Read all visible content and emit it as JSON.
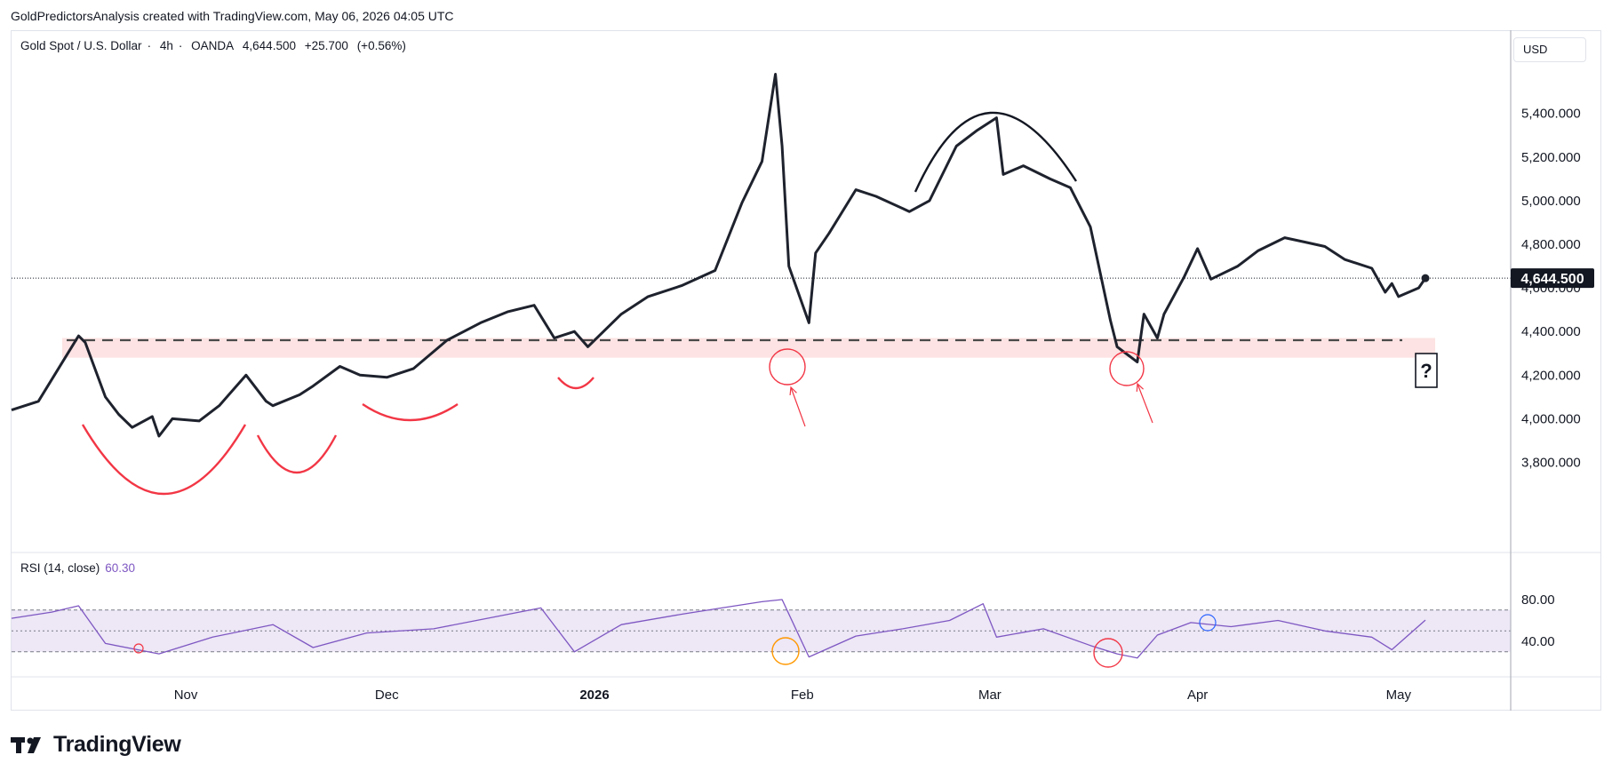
{
  "attribution": "GoldPredictorsAnalysis created with TradingView.com, May 06, 2026 04:05 UTC",
  "legend": {
    "symbol": "Gold Spot / U.S. Dollar",
    "interval": "4h",
    "exchange": "OANDA",
    "price": "4,644.500",
    "change": "+25.700",
    "change_pct": "(+0.56%)"
  },
  "currency_button": "USD",
  "brand": {
    "name": "TradingView",
    "icon": "tradingview-logo-icon"
  },
  "rsi_legend": {
    "label": "RSI (14, close)",
    "value": "60.30"
  },
  "colors": {
    "price_line": "#1e222d",
    "support_zone": "#fde3e3",
    "annotation_red": "#f23645",
    "rsi_line": "#7e57c2",
    "rsi_band": "#ede7f6",
    "last_price_badge": "#131722",
    "annotation_orange": "#ff9800",
    "annotation_blue": "#2962ff"
  },
  "chart_data": [
    {
      "type": "line",
      "series": [
        {
          "name": "",
          "x": [
            "2025-10-06",
            "2025-10-10",
            "2025-10-14",
            "2025-10-16",
            "2025-10-17",
            "2025-10-20",
            "2025-10-22",
            "2025-10-24",
            "2025-10-27",
            "2025-10-28",
            "2025-10-30",
            "2025-11-03",
            "2025-11-06",
            "2025-11-10",
            "2025-11-13",
            "2025-11-14",
            "2025-11-18",
            "2025-11-20",
            "2025-11-24",
            "2025-11-27",
            "2025-12-01",
            "2025-12-05",
            "2025-12-10",
            "2025-12-15",
            "2025-12-19",
            "2025-12-23",
            "2025-12-26",
            "2025-12-29",
            "2025-12-31",
            "2026-01-05",
            "2026-01-09",
            "2026-01-14",
            "2026-01-19",
            "2026-01-23",
            "2026-01-26",
            "2026-01-28",
            "2026-01-29",
            "2026-01-30",
            "2026-02-02",
            "2026-02-03",
            "2026-02-05",
            "2026-02-09",
            "2026-02-12",
            "2026-02-17",
            "2026-02-20",
            "2026-02-24",
            "2026-02-27",
            "2026-03-02",
            "2026-03-03",
            "2026-03-06",
            "2026-03-10",
            "2026-03-13",
            "2026-03-16",
            "2026-03-19",
            "2026-03-20",
            "2026-03-23",
            "2026-03-24",
            "2026-03-26",
            "2026-03-27",
            "2026-03-30",
            "2026-04-01",
            "2026-04-03",
            "2026-04-07",
            "2026-04-10",
            "2026-04-14",
            "2026-04-17",
            "2026-04-20",
            "2026-04-23",
            "2026-04-27",
            "2026-04-29",
            "2026-04-30",
            "2026-05-01",
            "2026-05-04",
            "2026-05-05"
          ],
          "values": [
            4040,
            4080,
            4280,
            4380,
            4350,
            4100,
            4020,
            3960,
            4010,
            3920,
            4000,
            3990,
            4060,
            4200,
            4080,
            4060,
            4110,
            4150,
            4240,
            4200,
            4190,
            4230,
            4360,
            4440,
            4490,
            4520,
            4370,
            4400,
            4330,
            4480,
            4560,
            4610,
            4680,
            4990,
            5180,
            5580,
            5250,
            4700,
            4440,
            4760,
            4850,
            5050,
            5020,
            4950,
            5000,
            5250,
            5320,
            5380,
            5120,
            5160,
            5100,
            5060,
            4880,
            4450,
            4330,
            4260,
            4480,
            4370,
            4480,
            4650,
            4780,
            4640,
            4700,
            4770,
            4830,
            4810,
            4790,
            4730,
            4690,
            4580,
            4620,
            4560,
            4600,
            4644.5
          ]
        }
      ],
      "ylim": [
        3700,
        5600
      ],
      "y_ticks": [
        "3,800.000",
        "4,000.000",
        "4,200.000",
        "4,400.000",
        "4,800.000",
        "5,000.000",
        "5,200.000",
        "5,400.000"
      ],
      "y_tick_values": [
        3800,
        4000,
        4200,
        4400,
        4800,
        5000,
        5200,
        5400
      ],
      "hidden_tick_label": "4,600.000",
      "x_ticks": [
        "Nov",
        "Dec",
        "2026",
        "Feb",
        "Mar",
        "Apr",
        "May"
      ],
      "x_tick_dates": [
        "2025-11-01",
        "2025-12-01",
        "2026-01-01",
        "2026-02-01",
        "2026-03-01",
        "2026-04-01",
        "2026-05-01"
      ],
      "last_price": 4644.5,
      "last_price_label": "4,644.500",
      "support_level": 4360,
      "support_zone": [
        4280,
        4370
      ],
      "question_marker": "?",
      "grid": false,
      "annotations": [
        "cup-arcs",
        "dome-arc",
        "red-circles",
        "red-arrows",
        "question-box"
      ]
    },
    {
      "type": "line",
      "series": [
        {
          "name": "",
          "x": [
            "2025-10-06",
            "2025-10-12",
            "2025-10-16",
            "2025-10-20",
            "2025-10-28",
            "2025-11-05",
            "2025-11-14",
            "2025-11-20",
            "2025-11-28",
            "2025-12-08",
            "2025-12-16",
            "2025-12-24",
            "2025-12-29",
            "2026-01-05",
            "2026-01-14",
            "2026-01-20",
            "2026-01-26",
            "2026-01-29",
            "2026-02-02",
            "2026-02-09",
            "2026-02-16",
            "2026-02-23",
            "2026-02-28",
            "2026-03-02",
            "2026-03-09",
            "2026-03-16",
            "2026-03-20",
            "2026-03-23",
            "2026-03-26",
            "2026-03-31",
            "2026-04-06",
            "2026-04-13",
            "2026-04-20",
            "2026-04-27",
            "2026-04-30",
            "2026-05-05"
          ],
          "values": [
            62,
            68,
            74,
            38,
            28,
            44,
            56,
            34,
            48,
            52,
            62,
            72,
            30,
            56,
            66,
            72,
            78,
            80,
            25,
            45,
            52,
            60,
            76,
            44,
            52,
            36,
            28,
            24,
            46,
            58,
            54,
            60,
            50,
            44,
            32,
            60.3
          ]
        }
      ],
      "ylim": [
        15,
        95
      ],
      "y_ticks": [
        "40.00",
        "80.00"
      ],
      "y_tick_values": [
        40,
        80
      ],
      "bands": [
        30,
        50,
        70
      ],
      "grid": false
    }
  ]
}
